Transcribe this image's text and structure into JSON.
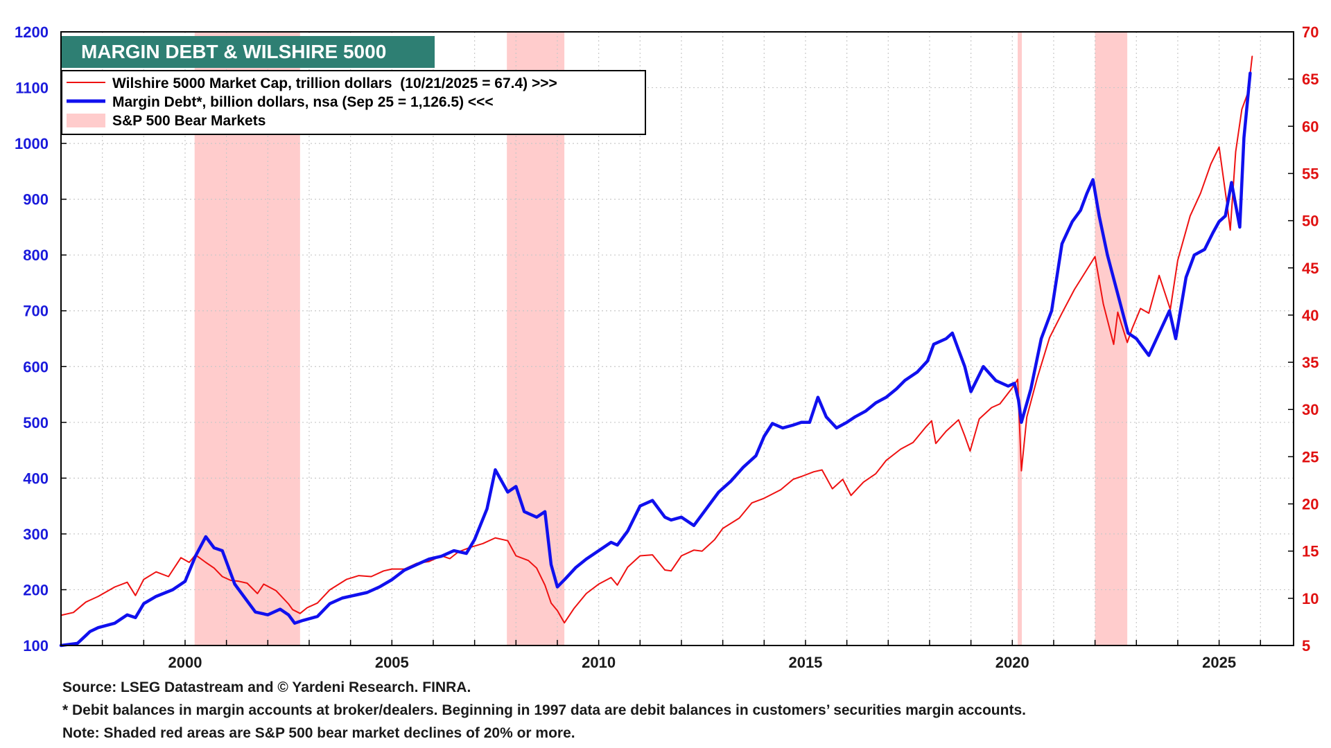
{
  "chart_data": {
    "type": "line",
    "title": "MARGIN DEBT & WILSHIRE 5000",
    "x_range": [
      1997,
      2026.8
    ],
    "x_ticks": [
      "2000",
      "2005",
      "2010",
      "2015",
      "2020",
      "2025"
    ],
    "y_left": {
      "range": [
        100,
        1200
      ],
      "ticks": [
        "100",
        "200",
        "300",
        "400",
        "500",
        "600",
        "700",
        "800",
        "900",
        "1000",
        "1100",
        "1200"
      ]
    },
    "y_right": {
      "range": [
        5,
        70
      ],
      "ticks": [
        "5",
        "10",
        "15",
        "20",
        "25",
        "30",
        "35",
        "40",
        "45",
        "50",
        "55",
        "60",
        "65",
        "70"
      ]
    },
    "grid": true,
    "legend_position": "top-left",
    "legend": [
      "Wilshire 5000 Market Cap, trillion dollars  (10/21/2025 = 67.4) >>>",
      "Margin Debt*, billion dollars, nsa (Sep 25 = 1,126.5) <<<",
      "S&P 500 Bear Markets"
    ],
    "bear_markets": [
      [
        2000.23,
        2002.78
      ],
      [
        2007.78,
        2009.17
      ],
      [
        2020.13,
        2020.23
      ],
      [
        2022.0,
        2022.78
      ]
    ],
    "series": [
      {
        "name": "Wilshire 5000 Market Cap, trillion dollars  (10/21/2025 = 67.4) >>>",
        "axis": "right",
        "color": "#ee1111",
        "x": [
          1997.0,
          1997.3,
          1997.6,
          1997.9,
          1998.3,
          1998.6,
          1998.8,
          1999.0,
          1999.3,
          1999.6,
          1999.9,
          2000.1,
          2000.25,
          2000.5,
          2000.7,
          2000.9,
          2001.1,
          2001.3,
          2001.5,
          2001.75,
          2001.9,
          2002.2,
          2002.5,
          2002.6,
          2002.78,
          2002.95,
          2003.2,
          2003.5,
          2003.9,
          2004.2,
          2004.5,
          2004.8,
          2005.0,
          2005.3,
          2005.6,
          2005.9,
          2006.2,
          2006.4,
          2006.6,
          2006.9,
          2007.2,
          2007.5,
          2007.8,
          2008.0,
          2008.3,
          2008.5,
          2008.7,
          2008.85,
          2009.0,
          2009.17,
          2009.4,
          2009.7,
          2010.0,
          2010.3,
          2010.45,
          2010.7,
          2011.0,
          2011.3,
          2011.6,
          2011.75,
          2012.0,
          2012.3,
          2012.5,
          2012.8,
          2013.0,
          2013.4,
          2013.7,
          2014.0,
          2014.4,
          2014.7,
          2014.9,
          2015.2,
          2015.4,
          2015.65,
          2015.9,
          2016.1,
          2016.4,
          2016.7,
          2016.95,
          2017.3,
          2017.6,
          2017.9,
          2018.05,
          2018.15,
          2018.4,
          2018.7,
          2018.85,
          2018.98,
          2019.2,
          2019.5,
          2019.7,
          2020.0,
          2020.13,
          2020.22,
          2020.35,
          2020.6,
          2020.9,
          2021.2,
          2021.5,
          2021.8,
          2022.0,
          2022.2,
          2022.45,
          2022.55,
          2022.78,
          2022.9,
          2023.1,
          2023.3,
          2023.55,
          2023.82,
          2024.0,
          2024.3,
          2024.55,
          2024.8,
          2025.0,
          2025.2,
          2025.27,
          2025.4,
          2025.55,
          2025.7,
          2025.8
        ],
        "values": [
          8.2,
          8.5,
          9.6,
          10.2,
          11.2,
          11.7,
          10.3,
          12.0,
          12.8,
          12.3,
          14.3,
          13.8,
          14.6,
          13.8,
          13.2,
          12.3,
          11.9,
          11.8,
          11.6,
          10.5,
          11.5,
          10.8,
          9.4,
          8.8,
          8.4,
          9.0,
          9.5,
          10.9,
          12.0,
          12.4,
          12.3,
          12.9,
          13.1,
          13.1,
          13.7,
          13.9,
          14.5,
          14.2,
          14.9,
          15.4,
          15.8,
          16.4,
          16.1,
          14.5,
          14.0,
          13.2,
          11.4,
          9.5,
          8.7,
          7.4,
          8.9,
          10.5,
          11.5,
          12.2,
          11.4,
          13.3,
          14.5,
          14.6,
          13.0,
          12.9,
          14.5,
          15.1,
          15.0,
          16.2,
          17.4,
          18.5,
          20.1,
          20.6,
          21.5,
          22.6,
          22.9,
          23.4,
          23.6,
          21.6,
          22.6,
          20.9,
          22.3,
          23.2,
          24.6,
          25.8,
          26.5,
          28.1,
          28.8,
          26.4,
          27.7,
          28.9,
          27.2,
          25.6,
          29.0,
          30.2,
          30.6,
          32.3,
          33.2,
          23.5,
          29.2,
          33.3,
          37.6,
          40.2,
          42.7,
          44.8,
          46.2,
          41.2,
          36.9,
          40.3,
          37.1,
          38.6,
          40.7,
          40.2,
          44.2,
          40.6,
          45.8,
          50.5,
          52.9,
          56.0,
          57.8,
          51.5,
          49.0,
          57.3,
          61.8,
          63.6,
          67.4
        ]
      },
      {
        "name": "Margin Debt*, billion dollars, nsa (Sep 25 = 1,126.5) <<<",
        "axis": "left",
        "color": "#1010ee",
        "x": [
          1997.0,
          1997.4,
          1997.7,
          1997.9,
          1998.3,
          1998.6,
          1998.8,
          1999.0,
          1999.3,
          1999.7,
          2000.0,
          2000.25,
          2000.5,
          2000.7,
          2000.9,
          2001.2,
          2001.5,
          2001.7,
          2002.0,
          2002.3,
          2002.5,
          2002.65,
          2002.85,
          2003.2,
          2003.5,
          2003.8,
          2004.1,
          2004.4,
          2004.7,
          2005.0,
          2005.3,
          2005.6,
          2005.9,
          2006.2,
          2006.5,
          2006.8,
          2007.0,
          2007.3,
          2007.5,
          2007.8,
          2008.0,
          2008.2,
          2008.5,
          2008.7,
          2008.85,
          2009.0,
          2009.2,
          2009.45,
          2009.7,
          2010.0,
          2010.3,
          2010.45,
          2010.7,
          2011.0,
          2011.3,
          2011.6,
          2011.75,
          2012.0,
          2012.3,
          2012.6,
          2012.9,
          2013.2,
          2013.5,
          2013.8,
          2014.0,
          2014.2,
          2014.45,
          2014.7,
          2014.9,
          2015.1,
          2015.3,
          2015.5,
          2015.75,
          2016.0,
          2016.2,
          2016.45,
          2016.7,
          2016.95,
          2017.2,
          2017.4,
          2017.7,
          2017.95,
          2018.1,
          2018.4,
          2018.55,
          2018.7,
          2018.85,
          2019.0,
          2019.3,
          2019.6,
          2019.9,
          2020.05,
          2020.15,
          2020.22,
          2020.45,
          2020.7,
          2020.95,
          2021.2,
          2021.45,
          2021.65,
          2021.8,
          2021.95,
          2022.1,
          2022.3,
          2022.55,
          2022.8,
          2023.0,
          2023.3,
          2023.55,
          2023.8,
          2023.95,
          2024.2,
          2024.4,
          2024.65,
          2024.85,
          2025.0,
          2025.15,
          2025.3,
          2025.5,
          2025.6,
          2025.75
        ],
        "values": [
          100,
          104,
          125,
          132,
          140,
          155,
          150,
          175,
          188,
          200,
          215,
          260,
          295,
          275,
          270,
          210,
          180,
          160,
          155,
          165,
          155,
          140,
          145,
          152,
          175,
          185,
          190,
          195,
          205,
          218,
          235,
          245,
          255,
          260,
          270,
          265,
          290,
          345,
          415,
          375,
          385,
          340,
          330,
          340,
          245,
          205,
          220,
          240,
          255,
          270,
          285,
          280,
          305,
          350,
          360,
          330,
          325,
          330,
          315,
          345,
          375,
          395,
          420,
          440,
          475,
          498,
          490,
          495,
          500,
          500,
          545,
          510,
          490,
          500,
          510,
          520,
          535,
          545,
          560,
          575,
          590,
          610,
          640,
          650,
          660,
          630,
          600,
          555,
          600,
          575,
          565,
          570,
          540,
          500,
          560,
          650,
          700,
          820,
          860,
          880,
          910,
          935,
          870,
          800,
          730,
          660,
          650,
          620,
          660,
          700,
          650,
          760,
          800,
          810,
          840,
          860,
          870,
          930,
          850,
          1010,
          1126
        ]
      }
    ]
  },
  "footnotes": {
    "source": "Source: LSEG Datastream and © Yardeni Research. FINRA.",
    "note1": "* Debit balances in margin accounts at broker/dealers. Beginning in 1997 data are debit balances in customers’ securities margin accounts.",
    "note2": "Note: Shaded red areas are S&P 500 bear market declines of 20% or more."
  }
}
